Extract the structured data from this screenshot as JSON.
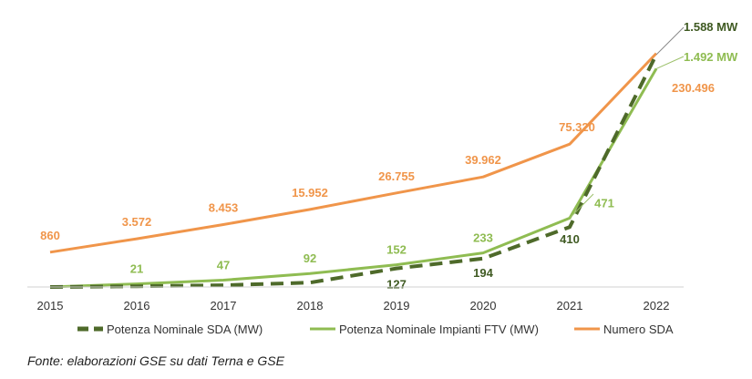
{
  "chart_data": {
    "type": "line",
    "categories": [
      "2015",
      "2016",
      "2017",
      "2018",
      "2019",
      "2020",
      "2021",
      "2022"
    ],
    "series": [
      {
        "name": "Potenza Nominale SDA (MW)",
        "color": "#4e6a2a",
        "style": "dashed",
        "values": [
          0,
          5,
          12,
          30,
          127,
          194,
          410,
          1588
        ],
        "labels": [
          "",
          "",
          "",
          "",
          "127",
          "194",
          "410",
          "1.588 MW"
        ]
      },
      {
        "name": "Potenza Nominale Impianti FTV (MW)",
        "color": "#8fbc52",
        "style": "solid",
        "values": [
          0,
          21,
          47,
          92,
          152,
          233,
          471,
          1492
        ],
        "labels": [
          "",
          "21",
          "47",
          "92",
          "152",
          "233",
          "471",
          "1.492 MW"
        ]
      },
      {
        "name": "Numero SDA",
        "color": "#f0954a",
        "style": "solid",
        "values": [
          860,
          3572,
          8453,
          15952,
          26755,
          39962,
          75320,
          230496
        ],
        "labels": [
          "860",
          "3.572",
          "8.453",
          "15.952",
          "26.755",
          "39.962",
          "75.320",
          "230.496"
        ]
      }
    ],
    "legend_position": "bottom",
    "grid": false
  },
  "source": "Fonte: elaborazioni GSE su dati Terna e GSE"
}
